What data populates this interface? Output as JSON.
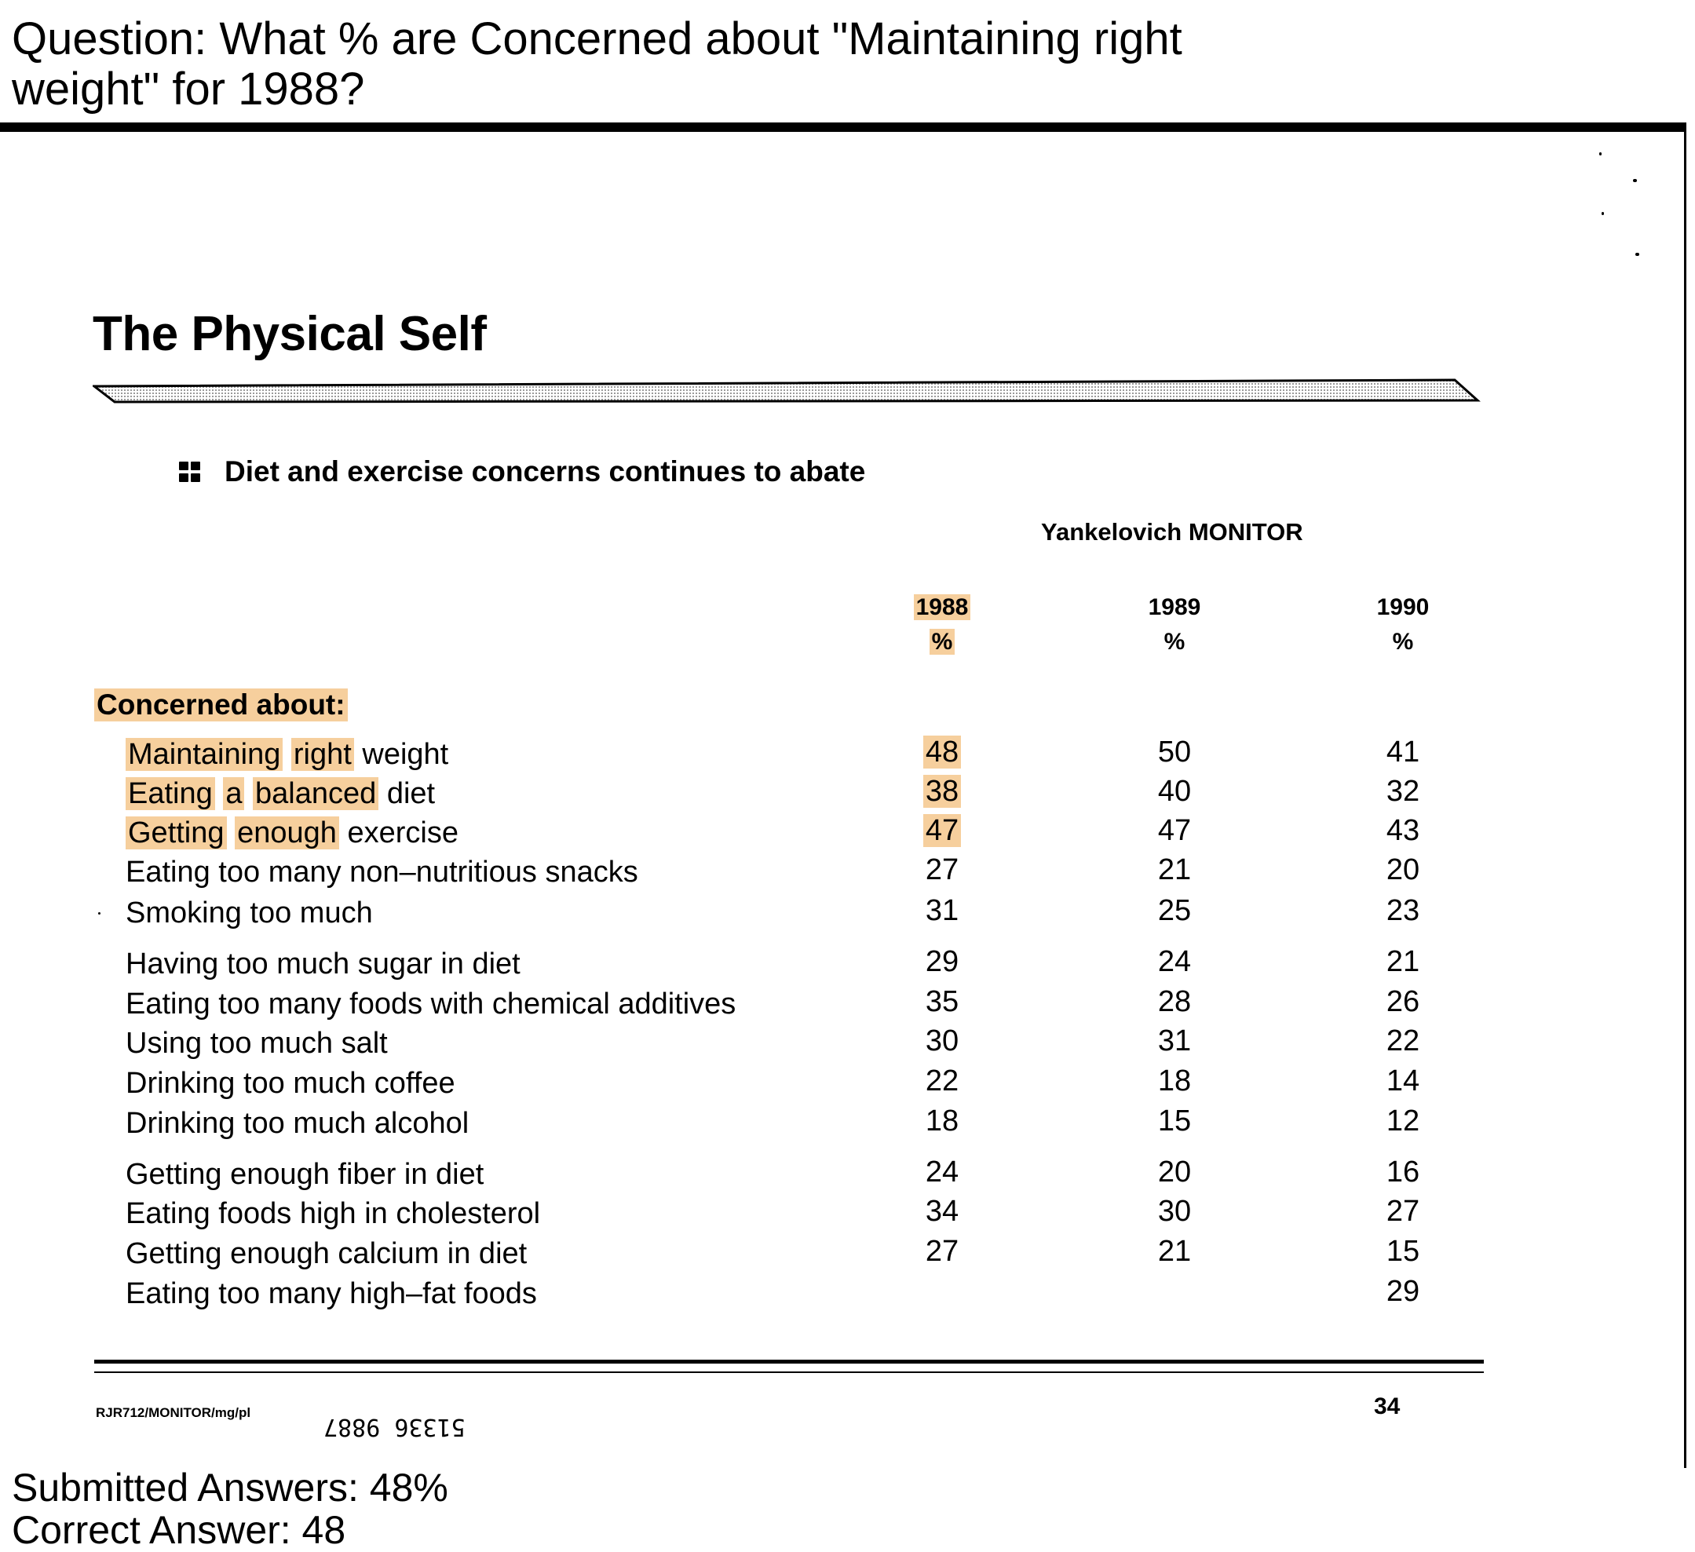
{
  "question": "Question: What % are Concerned about \"Maintaining right weight\" for 1988?",
  "document": {
    "title": "The Physical Self",
    "subtitle": "Diet and exercise concerns continues to abate",
    "source": "Yankelovich MONITOR",
    "columns": [
      {
        "year": "1988",
        "unit": "%"
      },
      {
        "year": "1989",
        "unit": "%"
      },
      {
        "year": "1990",
        "unit": "%"
      }
    ],
    "section_label": "Concerned about:",
    "rows": [
      {
        "label": "Maintaining right weight",
        "values": [
          "48",
          "50",
          "41"
        ]
      },
      {
        "label": "Eating a balanced diet",
        "values": [
          "38",
          "40",
          "32"
        ]
      },
      {
        "label": "Getting enough exercise",
        "values": [
          "47",
          "47",
          "43"
        ]
      },
      {
        "label": "Eating too many non–nutritious snacks",
        "values": [
          "27",
          "21",
          "20"
        ]
      },
      {
        "label": "Smoking too much",
        "values": [
          "31",
          "25",
          "23"
        ]
      },
      {
        "label": "Having too much sugar in diet",
        "values": [
          "29",
          "24",
          "21"
        ]
      },
      {
        "label": "Eating too many foods with chemical additives",
        "values": [
          "35",
          "28",
          "26"
        ]
      },
      {
        "label": "Using too much salt",
        "values": [
          "30",
          "31",
          "22"
        ]
      },
      {
        "label": "Drinking too much coffee",
        "values": [
          "22",
          "18",
          "14"
        ]
      },
      {
        "label": "Drinking too much alcohol",
        "values": [
          "18",
          "15",
          "12"
        ]
      },
      {
        "label": "Getting enough fiber in diet",
        "values": [
          "24",
          "20",
          "16"
        ]
      },
      {
        "label": "Eating foods high in cholesterol",
        "values": [
          "34",
          "30",
          "27"
        ]
      },
      {
        "label": "Getting enough calcium in diet",
        "values": [
          "27",
          "21",
          "15"
        ]
      },
      {
        "label": "Eating too many high–fat foods",
        "values": [
          "",
          "",
          "29"
        ]
      }
    ],
    "footer_code": "RJR712/MONITOR/mg/pl",
    "doc_number": "51336 9887",
    "page_number": "34"
  },
  "submitted_answers": "Submitted Answers: 48%",
  "correct_answer": "Correct Answer: 48",
  "highlight_color": "#f6cf9d"
}
